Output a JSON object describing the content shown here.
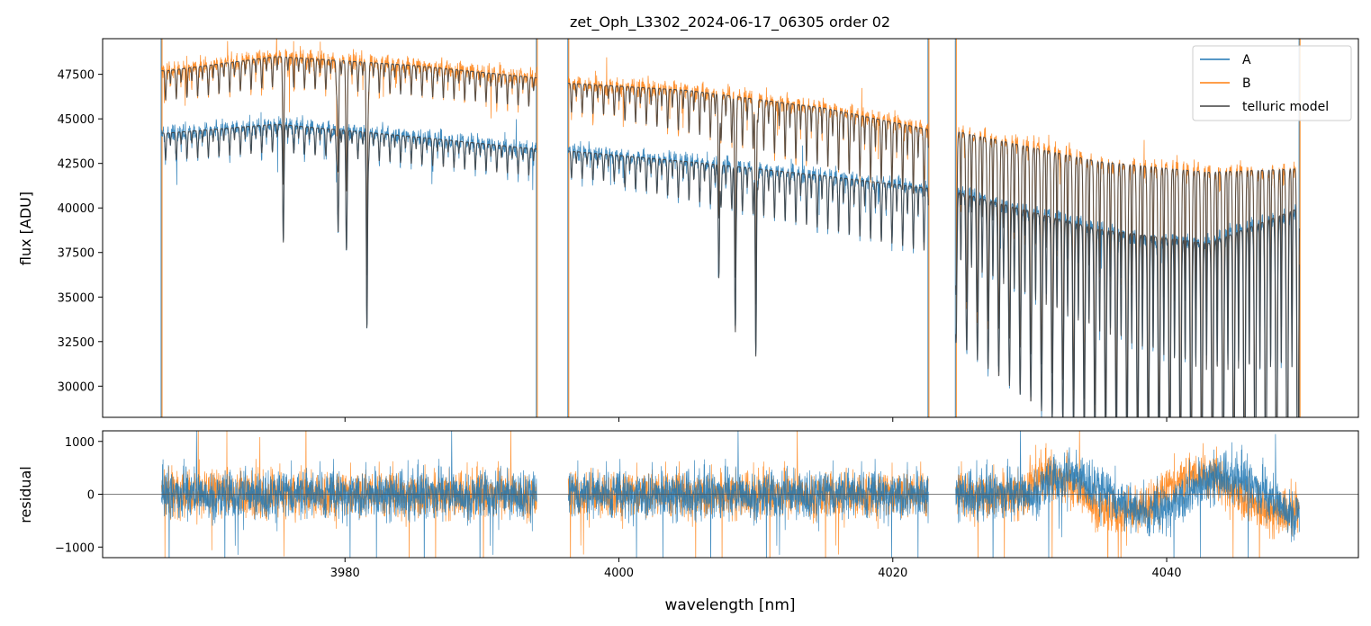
{
  "colors": {
    "A": "#1f77b4",
    "B": "#ff7f0e",
    "model": "#404040",
    "frame": "#000000",
    "zero_line": "#555555"
  },
  "chart_data": [
    {
      "type": "line",
      "title": "zet_Oph_L3302_2024-06-17_06305  order 02",
      "xlabel": "",
      "ylabel": "flux [ADU]",
      "xlim": [
        3962.3,
        4054.0
      ],
      "ylim": [
        28250,
        49500
      ],
      "x_ticks": [
        3980,
        4000,
        4020,
        4040
      ],
      "y_ticks": [
        30000,
        32500,
        35000,
        37500,
        40000,
        42500,
        45000,
        47500
      ],
      "y_tick_labels": [
        "30000",
        "32500",
        "35000",
        "37500",
        "40000",
        "42500",
        "45000",
        "47500"
      ],
      "legend": {
        "position": "top-right",
        "entries": [
          "A",
          "B",
          "telluric model"
        ]
      },
      "segments": [
        {
          "x_start": 3966.6,
          "x_end": 3994.0
        },
        {
          "x_start": 3996.3,
          "x_end": 4022.6
        },
        {
          "x_start": 4024.6,
          "x_end": 4049.7
        }
      ],
      "series": [
        {
          "name": "A",
          "continuum": [
            {
              "x": 3967.0,
              "y": 44200
            },
            {
              "x": 3975.0,
              "y": 44700
            },
            {
              "x": 3985.0,
              "y": 44000
            },
            {
              "x": 3994.0,
              "y": 43300
            },
            {
              "x": 3996.3,
              "y": 43200
            },
            {
              "x": 4005.0,
              "y": 42600
            },
            {
              "x": 4015.0,
              "y": 41800
            },
            {
              "x": 4022.6,
              "y": 41100
            },
            {
              "x": 4024.6,
              "y": 40900
            },
            {
              "x": 4035.0,
              "y": 38800
            },
            {
              "x": 4043.0,
              "y": 38000
            },
            {
              "x": 4049.7,
              "y": 40000
            }
          ]
        },
        {
          "name": "B",
          "continuum": [
            {
              "x": 3967.0,
              "y": 47700
            },
            {
              "x": 3975.0,
              "y": 48500
            },
            {
              "x": 3985.0,
              "y": 48000
            },
            {
              "x": 3994.0,
              "y": 47300
            },
            {
              "x": 3996.3,
              "y": 47000
            },
            {
              "x": 4005.0,
              "y": 46600
            },
            {
              "x": 4015.0,
              "y": 45600
            },
            {
              "x": 4022.6,
              "y": 44400
            },
            {
              "x": 4024.6,
              "y": 44300
            },
            {
              "x": 4035.0,
              "y": 42600
            },
            {
              "x": 4043.0,
              "y": 42000
            },
            {
              "x": 4049.7,
              "y": 42200
            }
          ]
        },
        {
          "name": "telluric model",
          "deep_lines": [
            {
              "x": 3975.5,
              "depth": 0.12
            },
            {
              "x": 3979.5,
              "depth": 0.13
            },
            {
              "x": 3980.1,
              "depth": 0.14
            },
            {
              "x": 3981.6,
              "depth": 0.25
            },
            {
              "x": 4007.3,
              "depth": 0.15
            },
            {
              "x": 4008.5,
              "depth": 0.22
            },
            {
              "x": 4010.0,
              "depth": 0.25
            }
          ],
          "regular_line_spacing_nm": 0.78
        }
      ]
    },
    {
      "type": "line",
      "title": "",
      "xlabel": "wavelength [nm]",
      "ylabel": "residual",
      "xlim": [
        3962.3,
        4054.0
      ],
      "ylim": [
        -1200,
        1200
      ],
      "x_ticks": [
        3980,
        4000,
        4020,
        4040
      ],
      "x_tick_labels": [
        "3980",
        "4000",
        "4020",
        "4040"
      ],
      "y_ticks": [
        -1000,
        0,
        1000
      ],
      "y_tick_labels": [
        "−1000",
        "0",
        "1000"
      ],
      "series": [
        {
          "name": "A",
          "noise_amplitude": 450
        },
        {
          "name": "B",
          "noise_amplitude": 420
        }
      ]
    }
  ]
}
